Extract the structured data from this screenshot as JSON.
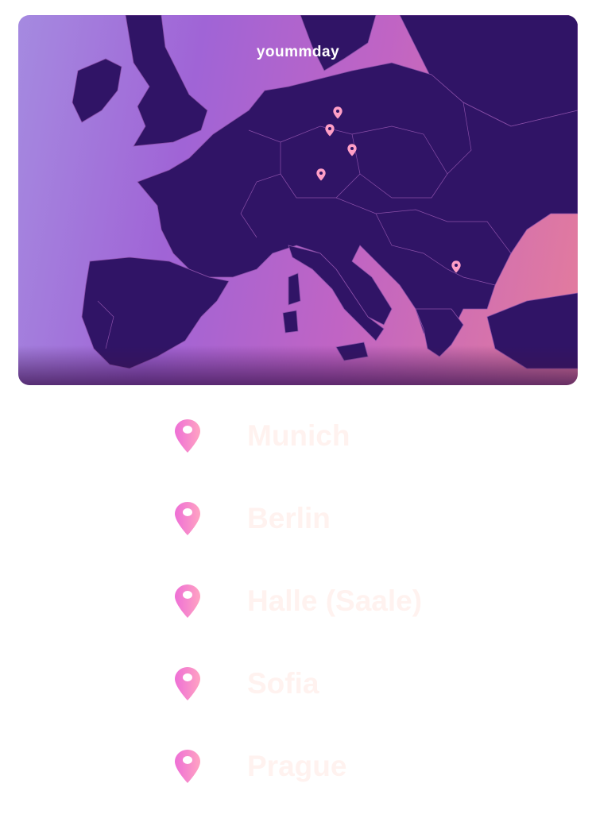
{
  "brand": "yoummday",
  "colors": {
    "map_land": "#301466",
    "pin_start": "#ee6fd6",
    "pin_end": "#ffa3c2",
    "label": "#fff2ef"
  },
  "map": {
    "markers": [
      "Berlin",
      "Halle (Saale)",
      "Prague",
      "Munich",
      "Sofia"
    ]
  },
  "locations": [
    {
      "name": "Munich",
      "icon": "map-pin-icon"
    },
    {
      "name": "Berlin",
      "icon": "map-pin-icon"
    },
    {
      "name": "Halle (Saale)",
      "icon": "map-pin-icon"
    },
    {
      "name": "Sofia",
      "icon": "map-pin-icon"
    },
    {
      "name": "Prague",
      "icon": "map-pin-icon"
    }
  ]
}
